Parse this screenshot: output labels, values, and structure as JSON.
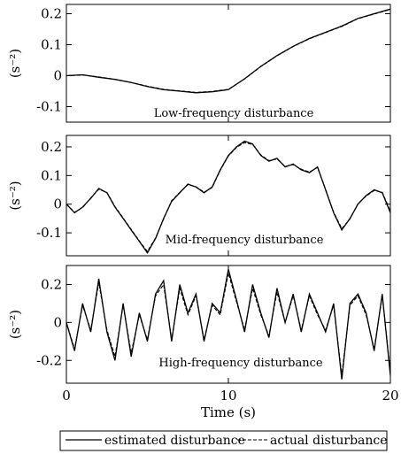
{
  "chart_data": [
    {
      "type": "line",
      "annotation": "Low-frequency disturbance",
      "ylabel": "(s⁻²)",
      "xlim": [
        0,
        20
      ],
      "ylim": [
        -0.15,
        0.23
      ],
      "yticks": [
        -0.1,
        0,
        0.1,
        0.2
      ],
      "ytick_labels": [
        "-0.1",
        "0",
        "0.1",
        "0.2"
      ],
      "series": [
        {
          "name": "estimated disturbance",
          "style": "solid",
          "x": [
            0,
            1,
            2,
            3,
            4,
            5,
            6,
            7,
            8,
            9,
            10,
            11,
            12,
            13,
            14,
            15,
            16,
            17,
            18,
            19,
            20
          ],
          "y": [
            0,
            0.003,
            -0.005,
            -0.012,
            -0.022,
            -0.035,
            -0.045,
            -0.05,
            -0.055,
            -0.052,
            -0.045,
            -0.01,
            0.03,
            0.065,
            0.095,
            0.12,
            0.14,
            0.16,
            0.185,
            0.2,
            0.215
          ]
        },
        {
          "name": "actual disturbance",
          "style": "dashed",
          "x": [
            0,
            1,
            2,
            3,
            4,
            5,
            6,
            7,
            8,
            9,
            10,
            11,
            12,
            13,
            14,
            15,
            16,
            17,
            18,
            19,
            20
          ],
          "y": [
            0,
            0.002,
            -0.004,
            -0.012,
            -0.022,
            -0.034,
            -0.044,
            -0.049,
            -0.054,
            -0.051,
            -0.044,
            -0.011,
            0.029,
            0.064,
            0.094,
            0.119,
            0.139,
            0.159,
            0.184,
            0.199,
            0.214
          ]
        }
      ]
    },
    {
      "type": "line",
      "annotation": "Mid-frequency disturbance",
      "ylabel": "(s⁻²)",
      "xlim": [
        0,
        20
      ],
      "ylim": [
        -0.18,
        0.24
      ],
      "yticks": [
        -0.1,
        0,
        0.1,
        0.2
      ],
      "ytick_labels": [
        "-0.1",
        "0",
        "0.1",
        "0.2"
      ],
      "series": [
        {
          "name": "estimated disturbance",
          "style": "solid",
          "x": [
            0,
            0.5,
            1,
            1.5,
            2,
            2.5,
            3,
            3.5,
            4,
            4.5,
            5,
            5.5,
            6,
            6.5,
            7,
            7.5,
            8,
            8.5,
            9,
            9.5,
            10,
            10.5,
            11,
            11.5,
            12,
            12.5,
            13,
            13.5,
            14,
            14.5,
            15,
            15.5,
            16,
            16.5,
            17,
            17.5,
            18,
            18.5,
            19,
            19.5,
            20
          ],
          "y": [
            0,
            -0.03,
            -0.01,
            0.02,
            0.055,
            0.04,
            -0.01,
            -0.05,
            -0.09,
            -0.13,
            -0.17,
            -0.12,
            -0.05,
            0.01,
            0.04,
            0.07,
            0.06,
            0.04,
            0.06,
            0.12,
            0.17,
            0.2,
            0.22,
            0.21,
            0.17,
            0.15,
            0.16,
            0.13,
            0.14,
            0.12,
            0.11,
            0.13,
            0.05,
            -0.03,
            -0.09,
            -0.05,
            0,
            0.03,
            0.05,
            0.04,
            -0.03
          ]
        },
        {
          "name": "actual disturbance",
          "style": "dashed",
          "x": [
            0,
            0.5,
            1,
            1.5,
            2,
            2.5,
            3,
            3.5,
            4,
            4.5,
            5,
            5.5,
            6,
            6.5,
            7,
            7.5,
            8,
            8.5,
            9,
            9.5,
            10,
            10.5,
            11,
            11.5,
            12,
            12.5,
            13,
            13.5,
            14,
            14.5,
            15,
            15.5,
            16,
            16.5,
            17,
            17.5,
            18,
            18.5,
            19,
            19.5,
            20
          ],
          "y": [
            0,
            -0.028,
            -0.012,
            0.022,
            0.052,
            0.041,
            -0.008,
            -0.048,
            -0.088,
            -0.128,
            -0.165,
            -0.118,
            -0.052,
            0.012,
            0.041,
            0.068,
            0.061,
            0.042,
            0.058,
            0.118,
            0.168,
            0.198,
            0.215,
            0.208,
            0.172,
            0.152,
            0.158,
            0.132,
            0.138,
            0.122,
            0.112,
            0.128,
            0.052,
            -0.028,
            -0.085,
            -0.052,
            0.002,
            0.028,
            0.048,
            0.042,
            -0.025
          ]
        }
      ]
    },
    {
      "type": "line",
      "annotation": "High-frequency disturbance",
      "ylabel": "(s⁻²)",
      "xlabel": "Time (s)",
      "xlim": [
        0,
        20
      ],
      "ylim": [
        -0.32,
        0.3
      ],
      "xticks": [
        0,
        10,
        20
      ],
      "xtick_labels": [
        "0",
        "10",
        "20"
      ],
      "yticks": [
        -0.2,
        0,
        0.2
      ],
      "ytick_labels": [
        "-0.2",
        "0",
        "0.2"
      ],
      "series": [
        {
          "name": "estimated disturbance",
          "style": "solid",
          "x": [
            0,
            0.5,
            1,
            1.5,
            2,
            2.5,
            3,
            3.5,
            4,
            4.5,
            5,
            5.5,
            6,
            6.5,
            7,
            7.5,
            8,
            8.5,
            9,
            9.5,
            10,
            10.5,
            11,
            11.5,
            12,
            12.5,
            13,
            13.5,
            14,
            14.5,
            15,
            15.5,
            16,
            16.5,
            17,
            17.5,
            18,
            18.5,
            19,
            19.5,
            20
          ],
          "y": [
            0,
            -0.15,
            0.1,
            -0.05,
            0.23,
            -0.05,
            -0.2,
            0.1,
            -0.18,
            0.05,
            -0.1,
            0.15,
            0.22,
            -0.1,
            0.2,
            0.05,
            0.15,
            -0.1,
            0.1,
            0.05,
            0.28,
            0.12,
            -0.05,
            0.2,
            0.05,
            -0.08,
            0.18,
            0.0,
            0.15,
            -0.05,
            0.15,
            0.05,
            -0.05,
            0.1,
            -0.3,
            0.1,
            0.15,
            0.05,
            -0.15,
            0.15,
            -0.28
          ]
        },
        {
          "name": "actual disturbance",
          "style": "dashed",
          "x": [
            0,
            0.5,
            1,
            1.5,
            2,
            2.5,
            3,
            3.5,
            4,
            4.5,
            5,
            5.5,
            6,
            6.5,
            7,
            7.5,
            8,
            8.5,
            9,
            9.5,
            10,
            10.5,
            11,
            11.5,
            12,
            12.5,
            13,
            13.5,
            14,
            14.5,
            15,
            15.5,
            16,
            16.5,
            17,
            17.5,
            18,
            18.5,
            19,
            19.5,
            20
          ],
          "y": [
            0,
            -0.14,
            0.09,
            -0.04,
            0.21,
            -0.04,
            -0.18,
            0.09,
            -0.16,
            0.04,
            -0.09,
            0.14,
            0.2,
            -0.09,
            0.18,
            0.04,
            0.14,
            -0.09,
            0.09,
            0.04,
            0.26,
            0.11,
            -0.04,
            0.18,
            0.04,
            -0.07,
            0.16,
            0.0,
            0.14,
            -0.04,
            0.14,
            0.04,
            -0.04,
            0.09,
            -0.28,
            0.09,
            0.14,
            0.04,
            -0.14,
            0.14,
            -0.26
          ]
        }
      ]
    }
  ],
  "legend": {
    "estimated": "estimated disturbance",
    "actual": "actual disturbance"
  }
}
